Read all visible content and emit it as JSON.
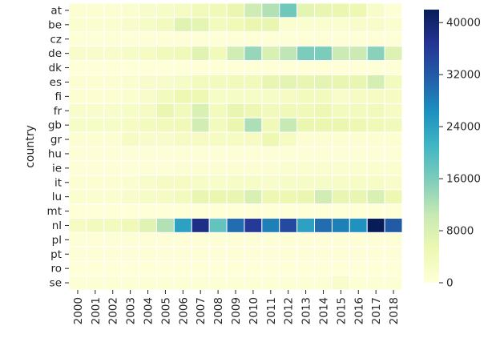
{
  "chart_data": {
    "type": "heatmap",
    "x": [
      "2000",
      "2001",
      "2002",
      "2003",
      "2004",
      "2005",
      "2006",
      "2007",
      "2008",
      "2009",
      "2010",
      "2011",
      "2012",
      "2013",
      "2014",
      "2015",
      "2016",
      "2017",
      "2018"
    ],
    "y": [
      "at",
      "be",
      "cz",
      "de",
      "dk",
      "es",
      "fi",
      "fr",
      "gb",
      "gr",
      "hu",
      "ie",
      "it",
      "lu",
      "mt",
      "nl",
      "pl",
      "pt",
      "ro",
      "se"
    ],
    "xlabel": "",
    "ylabel": "country",
    "colorbar": {
      "min": 0,
      "max": 42000,
      "ticks": [
        0,
        8000,
        16000,
        24000,
        32000,
        40000
      ],
      "colormap": "YlGnBu",
      "colors": [
        "#ffffd9",
        "#edf8b1",
        "#c7e9b4",
        "#7fcdbb",
        "#41b6c4",
        "#1d91c0",
        "#225ea8",
        "#253494",
        "#081d58"
      ]
    },
    "grid": false,
    "values": [
      [
        1000,
        1000,
        1000,
        1500,
        2000,
        2500,
        3000,
        4000,
        4500,
        5500,
        9500,
        12000,
        17000,
        6500,
        6000,
        5500,
        5000,
        2000,
        500
      ],
      [
        1500,
        1500,
        1500,
        2000,
        2500,
        3500,
        7000,
        6500,
        3500,
        4500,
        5500,
        6000,
        1500,
        1500,
        1500,
        1500,
        2000,
        2000,
        1500
      ],
      [
        500,
        500,
        500,
        500,
        500,
        500,
        500,
        500,
        500,
        500,
        500,
        500,
        500,
        500,
        500,
        500,
        500,
        500,
        500
      ],
      [
        2000,
        2000,
        2000,
        2500,
        3000,
        4000,
        4500,
        7000,
        4000,
        9000,
        14000,
        8000,
        11000,
        16000,
        16000,
        10000,
        10000,
        15000,
        7500
      ],
      [
        300,
        300,
        300,
        300,
        300,
        300,
        300,
        300,
        300,
        300,
        300,
        300,
        300,
        300,
        300,
        300,
        300,
        300,
        300
      ],
      [
        1000,
        1000,
        1000,
        1500,
        2000,
        2000,
        2500,
        3500,
        3500,
        4000,
        4000,
        6000,
        6500,
        6000,
        6500,
        6000,
        6000,
        8500,
        3500
      ],
      [
        1000,
        1000,
        1000,
        1500,
        2000,
        3500,
        5000,
        5000,
        2500,
        2500,
        2500,
        2500,
        3000,
        3500,
        3500,
        2000,
        3000,
        3000,
        3000
      ],
      [
        2000,
        2000,
        2000,
        2500,
        3000,
        5500,
        4000,
        8000,
        3500,
        6000,
        5000,
        4000,
        4500,
        4500,
        5000,
        3500,
        3500,
        4000,
        3000
      ],
      [
        2500,
        2500,
        2500,
        3000,
        3500,
        4000,
        4500,
        9000,
        3500,
        5500,
        12500,
        4500,
        10500,
        5500,
        5500,
        5500,
        5000,
        4500,
        4000
      ],
      [
        1000,
        1000,
        1000,
        3000,
        2000,
        2000,
        3000,
        3000,
        3000,
        3000,
        3000,
        5000,
        3000,
        1000,
        1000,
        1000,
        1000,
        1000,
        1000
      ],
      [
        500,
        500,
        500,
        500,
        500,
        500,
        500,
        500,
        500,
        500,
        500,
        500,
        500,
        500,
        500,
        500,
        500,
        500,
        500
      ],
      [
        500,
        500,
        500,
        500,
        500,
        500,
        1000,
        1000,
        1000,
        1000,
        1000,
        1000,
        1500,
        1500,
        1500,
        1500,
        1500,
        1500,
        1500
      ],
      [
        1000,
        1000,
        1000,
        1500,
        2000,
        3000,
        3000,
        2500,
        2000,
        2500,
        2500,
        2000,
        2500,
        2500,
        2500,
        2500,
        2500,
        2500,
        2000
      ],
      [
        1500,
        1500,
        1500,
        2000,
        2500,
        3000,
        3500,
        6000,
        5500,
        6000,
        8000,
        5000,
        5000,
        5500,
        9000,
        6000,
        6000,
        8000,
        5000
      ],
      [
        200,
        200,
        200,
        200,
        200,
        200,
        200,
        200,
        200,
        200,
        200,
        200,
        200,
        200,
        200,
        200,
        200,
        200,
        200
      ],
      [
        3000,
        3500,
        3500,
        4500,
        7000,
        12000,
        24000,
        38000,
        18000,
        30000,
        36000,
        28000,
        34000,
        24000,
        30000,
        28000,
        26000,
        42000,
        32000
      ],
      [
        500,
        500,
        500,
        500,
        500,
        500,
        500,
        500,
        500,
        500,
        500,
        500,
        500,
        500,
        500,
        500,
        500,
        500,
        500
      ],
      [
        500,
        500,
        500,
        500,
        500,
        500,
        500,
        500,
        500,
        500,
        500,
        500,
        500,
        500,
        500,
        500,
        500,
        500,
        500
      ],
      [
        300,
        300,
        300,
        300,
        300,
        300,
        300,
        300,
        300,
        300,
        300,
        300,
        300,
        300,
        300,
        300,
        300,
        300,
        300
      ],
      [
        800,
        800,
        800,
        800,
        800,
        800,
        800,
        800,
        800,
        800,
        800,
        800,
        800,
        800,
        800,
        2000,
        800,
        800,
        800
      ]
    ]
  }
}
